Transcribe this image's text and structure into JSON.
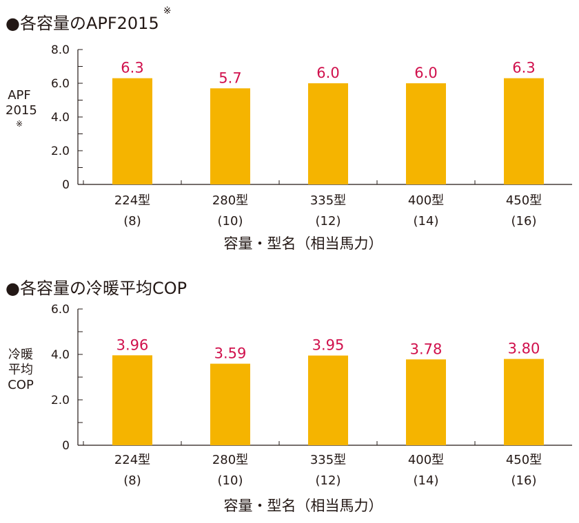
{
  "chart_data": [
    {
      "type": "bar",
      "title": "●各容量のAPF2015",
      "title_note": "※",
      "ylabel_lines": [
        "APF",
        "2015"
      ],
      "ylabel_note": "※",
      "xlabel": "容量・型名（相当馬力）",
      "categories": [
        "224型",
        "280型",
        "335型",
        "400型",
        "450型"
      ],
      "category_sublabels": [
        "(8)",
        "(10)",
        "(12)",
        "(14)",
        "(16)"
      ],
      "values": [
        6.3,
        5.7,
        6.0,
        6.0,
        6.3
      ],
      "value_labels": [
        "6.3",
        "5.7",
        "6.0",
        "6.0",
        "6.3"
      ],
      "ylim": [
        0,
        8
      ],
      "yticks": [
        0,
        2,
        4,
        6,
        8
      ],
      "ytick_labels": [
        "0",
        "2.0",
        "4.0",
        "6.0",
        "8.0"
      ],
      "bar_color": "#f5b400",
      "label_color": "#d0104c"
    },
    {
      "type": "bar",
      "title": "●各容量の冷暖平均COP",
      "ylabel_lines": [
        "冷暖",
        "平均",
        "COP"
      ],
      "xlabel": "容量・型名（相当馬力）",
      "categories": [
        "224型",
        "280型",
        "335型",
        "400型",
        "450型"
      ],
      "category_sublabels": [
        "(8)",
        "(10)",
        "(12)",
        "(14)",
        "(16)"
      ],
      "values": [
        3.96,
        3.59,
        3.95,
        3.78,
        3.8
      ],
      "value_labels": [
        "3.96",
        "3.59",
        "3.95",
        "3.78",
        "3.80"
      ],
      "ylim": [
        0,
        6
      ],
      "yticks": [
        0,
        2,
        4,
        6
      ],
      "ytick_labels": [
        "0",
        "2.0",
        "4.0",
        "6.0"
      ],
      "bar_color": "#f5b400",
      "label_color": "#d0104c"
    }
  ]
}
